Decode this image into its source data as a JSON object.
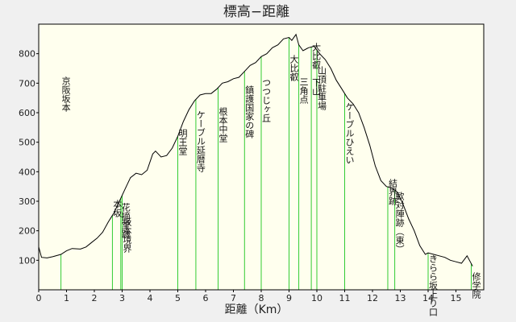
{
  "chart_data": {
    "type": "line",
    "title": "標高−距離",
    "xlabel": "距離（Km）",
    "ylabel": "",
    "xlim": [
      0,
      16
    ],
    "ylim": [
      0,
      900
    ],
    "xticks": [
      0,
      1,
      2,
      3,
      4,
      5,
      6,
      7,
      8,
      9,
      10,
      11,
      12,
      13,
      14,
      15
    ],
    "yticks": [
      100,
      200,
      300,
      400,
      500,
      600,
      700,
      800
    ],
    "colors": {
      "plot_bg": "#ffffee",
      "line": "#000000",
      "marker": "#33cc33",
      "frame": "#000000"
    },
    "series": [
      {
        "x": [
          0,
          0.1,
          0.3,
          0.5,
          0.8,
          1.0,
          1.2,
          1.5,
          1.7,
          1.9,
          2.1,
          2.3,
          2.5,
          2.7,
          2.9,
          3.1,
          3.3,
          3.5,
          3.7,
          3.9,
          4.1,
          4.2,
          4.4,
          4.6,
          4.8,
          5.0,
          5.2,
          5.4,
          5.6,
          5.8,
          6.0,
          6.2,
          6.4,
          6.6,
          6.8,
          7.0,
          7.2,
          7.4,
          7.6,
          7.8,
          8.0,
          8.2,
          8.4,
          8.6,
          8.8,
          9.0,
          9.1,
          9.25,
          9.35,
          9.5,
          9.7,
          9.9,
          10.1,
          10.3,
          10.5,
          10.7,
          10.9,
          11.1,
          11.3,
          11.5,
          11.7,
          11.9,
          12.1,
          12.3,
          12.5,
          12.7,
          12.9,
          13.1,
          13.3,
          13.5,
          13.7,
          13.9,
          14.0,
          14.2,
          14.4,
          14.6,
          14.8,
          15.0,
          15.2,
          15.4,
          15.6
        ],
        "y": [
          145,
          110,
          108,
          112,
          120,
          132,
          140,
          138,
          145,
          160,
          175,
          195,
          230,
          260,
          300,
          340,
          380,
          395,
          390,
          405,
          460,
          470,
          450,
          455,
          480,
          520,
          570,
          610,
          640,
          660,
          665,
          665,
          680,
          700,
          705,
          715,
          720,
          740,
          760,
          770,
          790,
          800,
          820,
          830,
          850,
          855,
          845,
          865,
          830,
          810,
          820,
          825,
          800,
          780,
          750,
          710,
          680,
          650,
          630,
          600,
          550,
          490,
          420,
          370,
          350,
          345,
          330,
          290,
          240,
          200,
          150,
          120,
          125,
          120,
          115,
          110,
          100,
          95,
          90,
          115,
          80
        ]
      }
    ],
    "landmarks": [
      {
        "x": 0.8,
        "label": "京阪坂本",
        "label_top": 95,
        "stacked": false
      },
      {
        "x": 2.65,
        "label": "本坂",
        "label_top": 248,
        "stacked": true
      },
      {
        "x": 2.95,
        "label": "花摘堂跡",
        "label_top": 252,
        "stacked": true
      },
      {
        "x": 3.0,
        "label": "坂本境界",
        "label_top": 270,
        "stacked": true
      },
      {
        "x": 5.0,
        "label": "明王堂",
        "label_top": 160,
        "stacked": false
      },
      {
        "x": 5.65,
        "label": "ケーブル延暦寺",
        "label_top": 137,
        "stacked": false
      },
      {
        "x": 6.45,
        "label": "根本中堂",
        "label_top": 133,
        "stacked": false
      },
      {
        "x": 7.4,
        "label": "鎮護国家の碑",
        "label_top": 106,
        "stacked": false
      },
      {
        "x": 8.0,
        "label": "つつじヶ丘",
        "label_top": 97,
        "stacked": false
      },
      {
        "x": 9.0,
        "label": "大比叡",
        "label_top": 68,
        "stacked": false
      },
      {
        "x": 9.35,
        "label": "三角点",
        "label_top": 96,
        "stacked": false
      },
      {
        "x": 9.8,
        "label": "大比叡　下山",
        "label_top": 53,
        "stacked": false
      },
      {
        "x": 10.0,
        "label": "山頂駐車場",
        "label_top": 82,
        "stacked": false
      },
      {
        "x": 11.0,
        "label": "ケーブルひえい",
        "label_top": 127,
        "stacked": false
      },
      {
        "x": 12.55,
        "label": "結界跡",
        "label_top": 222,
        "stacked": false
      },
      {
        "x": 12.8,
        "label": "歓対陣跡（東）",
        "label_top": 238,
        "stacked": false
      },
      {
        "x": 14.0,
        "label": "きらら坂上り口",
        "label_top": 316,
        "stacked": false
      },
      {
        "x": 15.55,
        "label": "修学院",
        "label_top": 338,
        "stacked": false
      }
    ]
  }
}
